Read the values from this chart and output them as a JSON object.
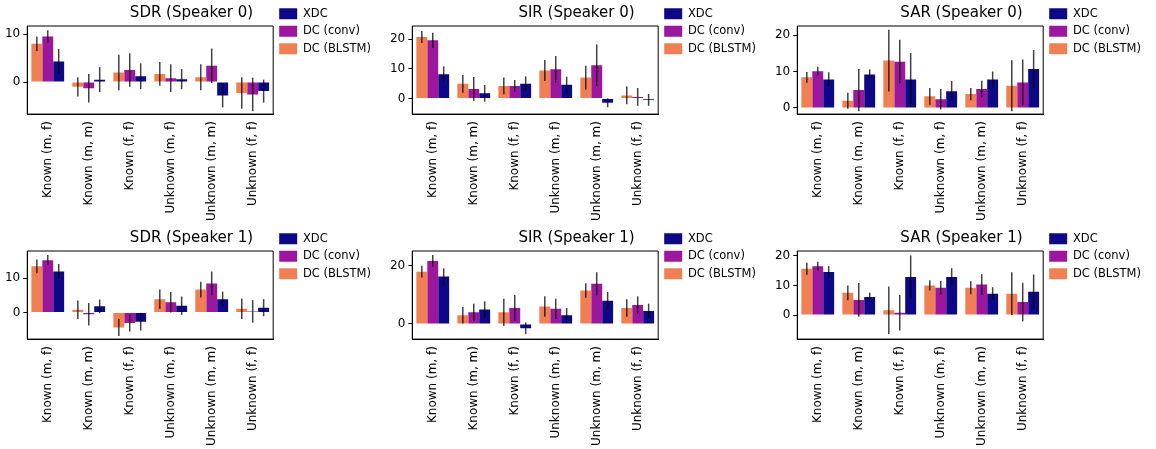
{
  "chart_data": [
    {
      "type": "bar",
      "title": "SDR (Speaker 0)",
      "categories": [
        "Known (m, f)",
        "Known (m, m)",
        "Known (f, f)",
        "Unknown (m, f)",
        "Unknown (m, m)",
        "Unknown (f, f)"
      ],
      "ylim": [
        -6.7,
        11.7
      ],
      "yticks": [
        0,
        10
      ],
      "legend": "right",
      "series": [
        {
          "name": "DC (BLSTM)",
          "color": "#f07f53",
          "values": [
            8,
            -1,
            2,
            1.7,
            1,
            -2.3
          ],
          "errors": [
            1.5,
            2,
            3.7,
            2.5,
            2.7,
            3.3
          ]
        },
        {
          "name": "DC (conv)",
          "color": "#9c179e",
          "values": [
            9.5,
            -1.3,
            2.5,
            0.8,
            3.4,
            -2.6
          ],
          "errors": [
            1.3,
            3,
            3.5,
            2.9,
            3.6,
            3.5
          ]
        },
        {
          "name": "XDC",
          "color": "#0d0887",
          "values": [
            4.3,
            0.5,
            1.2,
            0.6,
            -2.8,
            -1.9
          ],
          "errors": [
            2.6,
            2.6,
            2.7,
            2.1,
            2.5,
            2.4
          ]
        }
      ]
    },
    {
      "type": "bar",
      "title": "SIR (Speaker 0)",
      "categories": [
        "Known (m, f)",
        "Known (m, m)",
        "Known (f, f)",
        "Unknown (m, f)",
        "Unknown (m, m)",
        "Unknown (f, f)"
      ],
      "ylim": [
        -5.3,
        24.4
      ],
      "yticks": [
        0,
        10,
        20
      ],
      "legend": "right",
      "series": [
        {
          "name": "DC (BLSTM)",
          "color": "#f07f53",
          "values": [
            20.7,
            4.9,
            4.2,
            9.4,
            7,
            1
          ],
          "errors": [
            2,
            3,
            2.8,
            3.5,
            4,
            3
          ]
        },
        {
          "name": "DC (conv)",
          "color": "#9c179e",
          "values": [
            19.6,
            3.2,
            4.2,
            9.8,
            11.2,
            0.5
          ],
          "errors": [
            2.5,
            4,
            2,
            4.5,
            7,
            3
          ]
        },
        {
          "name": "XDC",
          "color": "#0d0887",
          "values": [
            8.1,
            1.7,
            4.9,
            4.6,
            -1.5,
            -0.5
          ],
          "errors": [
            2.7,
            2.8,
            2.5,
            2.7,
            1.5,
            2
          ]
        }
      ]
    },
    {
      "type": "bar",
      "title": "SAR (Speaker 0)",
      "categories": [
        "Known (m, f)",
        "Known (m, m)",
        "Known (f, f)",
        "Unknown (m, f)",
        "Unknown (m, m)",
        "Unknown (f, f)"
      ],
      "ylim": [
        -1.7,
        22.5
      ],
      "yticks": [
        0,
        10,
        20
      ],
      "legend": "right",
      "series": [
        {
          "name": "DC (BLSTM)",
          "color": "#f07f53",
          "values": [
            8.4,
            2,
            13,
            3.2,
            3.8,
            6.1
          ],
          "errors": [
            1.5,
            2.2,
            8.5,
            2.3,
            1.7,
            7
          ]
        },
        {
          "name": "DC (conv)",
          "color": "#9c179e",
          "values": [
            10.1,
            4.9,
            12.7,
            2.4,
            5.2,
            7
          ],
          "errors": [
            1.2,
            5.8,
            6,
            2.8,
            2.3,
            6.3
          ]
        },
        {
          "name": "XDC",
          "color": "#0d0887",
          "values": [
            7.8,
            9.2,
            7.8,
            4.6,
            7.8,
            10.7
          ],
          "errors": [
            2,
            1.4,
            7.3,
            2.8,
            2.2,
            5.2
          ]
        }
      ]
    },
    {
      "type": "bar",
      "title": "SDR (Speaker 1)",
      "categories": [
        "Known (m, f)",
        "Known (m, m)",
        "Known (f, f)",
        "Unknown (m, f)",
        "Unknown (m, m)",
        "Unknown (f, f)"
      ],
      "ylim": [
        -7.8,
        18
      ],
      "yticks": [
        0,
        10
      ],
      "legend": "right",
      "series": [
        {
          "name": "DC (BLSTM)",
          "color": "#f07f53",
          "values": [
            13.5,
            0.8,
            -4.4,
            3.9,
            6.7,
            1.1
          ],
          "errors": [
            2,
            2.7,
            2.5,
            2.8,
            2.3,
            3
          ]
        },
        {
          "name": "DC (conv)",
          "color": "#9c179e",
          "values": [
            15.3,
            -0.5,
            -3.1,
            3,
            8.5,
            0.3
          ],
          "errors": [
            1.5,
            3.3,
            2.5,
            3,
            3.5,
            3.3
          ]
        },
        {
          "name": "XDC",
          "color": "#0d0887",
          "values": [
            12,
            1.8,
            -2.7,
            2,
            3.9,
            1.4
          ],
          "errors": [
            2.2,
            2,
            2.6,
            2.7,
            2.2,
            2.5
          ]
        }
      ]
    },
    {
      "type": "bar",
      "title": "SIR (Speaker 1)",
      "categories": [
        "Known (m, f)",
        "Known (m, m)",
        "Known (f, f)",
        "Unknown (m, f)",
        "Unknown (m, m)",
        "Unknown (f, f)"
      ],
      "ylim": [
        -5.2,
        25.1
      ],
      "yticks": [
        0,
        20
      ],
      "legend": "right",
      "series": [
        {
          "name": "DC (BLSTM)",
          "color": "#f07f53",
          "values": [
            18,
            3,
            4,
            6,
            11.5,
            5.5
          ],
          "errors": [
            2,
            2.8,
            4.7,
            3.5,
            2.5,
            3
          ]
        },
        {
          "name": "DC (conv)",
          "color": "#9c179e",
          "values": [
            21.7,
            4,
            5.5,
            5.2,
            13.8,
            6.5
          ],
          "errors": [
            2,
            3,
            4.5,
            3.5,
            4,
            3
          ]
        },
        {
          "name": "XDC",
          "color": "#0d0887",
          "values": [
            16.3,
            5,
            -1.5,
            3,
            8,
            4.5
          ],
          "errors": [
            2.8,
            2.8,
            2,
            2.5,
            3,
            2.5
          ]
        }
      ]
    },
    {
      "type": "bar",
      "title": "SAR (Speaker 1)",
      "categories": [
        "Known (m, f)",
        "Known (m, m)",
        "Known (f, f)",
        "Unknown (m, f)",
        "Unknown (m, m)",
        "Unknown (f, f)"
      ],
      "ylim": [
        -8.1,
        21.6
      ],
      "yticks": [
        0,
        10,
        20
      ],
      "legend": "right",
      "series": [
        {
          "name": "DC (BLSTM)",
          "color": "#f07f53",
          "values": [
            15.6,
            7.5,
            1.6,
            10,
            9.2,
            7.2
          ],
          "errors": [
            2,
            2.5,
            8,
            1.7,
            2.2,
            7.2
          ]
        },
        {
          "name": "DC (conv)",
          "color": "#9c179e",
          "values": [
            16.5,
            5.1,
            0.8,
            9.2,
            10.3,
            4.4
          ],
          "errors": [
            1.5,
            5.7,
            6,
            2.3,
            3.5,
            6.5
          ]
        },
        {
          "name": "XDC",
          "color": "#0d0887",
          "values": [
            14.5,
            6.1,
            12.8,
            12.8,
            7.2,
            7.9
          ],
          "errors": [
            2,
            1.5,
            7.3,
            3,
            2.2,
            5.8
          ]
        }
      ]
    }
  ]
}
